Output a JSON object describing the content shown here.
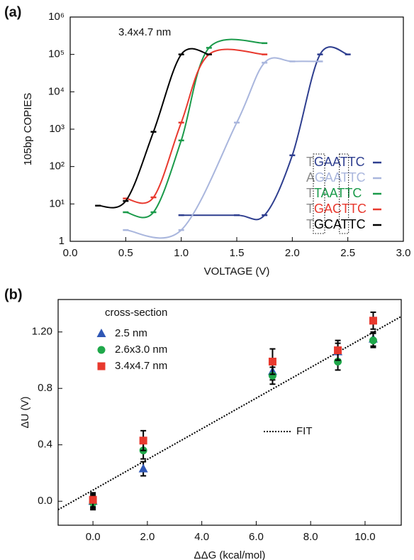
{
  "chart_data": [
    {
      "type": "line",
      "panel_label": "(a)",
      "annotation": "3.4x4.7 nm",
      "x_label": "VOLTAGE (V)",
      "y_label": "105bp COPIES",
      "log_y": true,
      "xlim": [
        0,
        3
      ],
      "ylim": [
        1,
        1000000
      ],
      "xticks": [
        {
          "value": 0,
          "label": "0.0"
        },
        {
          "value": 0.5,
          "label": "0.5"
        },
        {
          "value": 1,
          "label": "1.0"
        },
        {
          "value": 1.5,
          "label": "1.5"
        },
        {
          "value": 2,
          "label": "2.0"
        },
        {
          "value": 2.5,
          "label": "2.5"
        },
        {
          "value": 3,
          "label": "3.0"
        }
      ],
      "yticks": [
        1,
        {
          "value": 10,
          "label": "10¹"
        },
        {
          "value": 100,
          "label": "10²"
        },
        {
          "value": 1000,
          "label": "10³"
        },
        {
          "value": 10000,
          "label": "10⁴"
        },
        {
          "value": 100000,
          "label": "10⁵"
        },
        {
          "value": 1000000,
          "label": "10⁶"
        }
      ],
      "series": [
        {
          "name": "TGAATTC",
          "color": "#2e3e8f",
          "x": [
            1.0,
            1.5,
            1.75,
            2.0,
            2.25,
            2.5
          ],
          "values": [
            5,
            5,
            5,
            200,
            100000,
            100000
          ]
        },
        {
          "name": "AGAATTC",
          "color": "#a9b6dd",
          "x": [
            0.5,
            1.0,
            1.5,
            1.75,
            2.0,
            2.25
          ],
          "values": [
            2,
            2,
            1500,
            60000,
            65000,
            65000
          ]
        },
        {
          "name": "TTAATTC",
          "color": "#1a9a4a",
          "x": [
            0.5,
            0.75,
            1.0,
            1.25,
            1.75
          ],
          "values": [
            6,
            6,
            500,
            150000,
            200000
          ]
        },
        {
          "name": "TGACTTC",
          "color": "#e8392e",
          "x": [
            0.5,
            0.75,
            1.0,
            1.25,
            1.75
          ],
          "values": [
            14,
            15,
            1500,
            100000,
            100000
          ]
        },
        {
          "name": "TGCATTC",
          "color": "#000000",
          "x": [
            0.25,
            0.5,
            0.75,
            1.0,
            1.25
          ],
          "values": [
            9,
            12,
            850,
            100000,
            100000
          ]
        }
      ]
    },
    {
      "type": "scatter",
      "panel_label": "(b)",
      "x_label": "ΔΔG (kcal/mol)",
      "y_label": "ΔU (V)",
      "legend_title": "cross-section",
      "xlim": [
        -1.28,
        11.33
      ],
      "ylim": [
        -0.17,
        1.43
      ],
      "xticks": [
        {
          "value": 0,
          "label": "0.0"
        },
        {
          "value": 2,
          "label": "2.0"
        },
        {
          "value": 4,
          "label": "4.0"
        },
        {
          "value": 6,
          "label": "6.0"
        },
        {
          "value": 8,
          "label": "8.0"
        },
        {
          "value": 10,
          "label": "10.0"
        }
      ],
      "yticks": [
        {
          "value": 0,
          "label": "0.0"
        },
        0.4,
        0.8,
        {
          "value": 1.2,
          "label": "1.20"
        }
      ],
      "fit": {
        "name": "FIT",
        "color": "#000000",
        "x": [
          -1.28,
          11.33
        ],
        "values": [
          -0.06,
          1.31
        ]
      },
      "series": [
        {
          "name": "2.5 nm",
          "color": "#2f57b5",
          "marker": "triangle",
          "x": [
            0,
            1.85,
            6.6,
            9.0,
            10.3
          ],
          "values": [
            0.0,
            0.23,
            0.92,
            1.06,
            1.15
          ],
          "errors": [
            0.05,
            0.05,
            0.06,
            0.06,
            0.05
          ]
        },
        {
          "name": "2.6x3.0 nm",
          "color": "#1fa84a",
          "marker": "circle",
          "x": [
            0,
            1.85,
            6.6,
            9.0,
            10.3
          ],
          "values": [
            -0.01,
            0.36,
            0.89,
            0.99,
            1.14
          ],
          "errors": [
            0.05,
            0.06,
            0.06,
            0.06,
            0.05
          ]
        },
        {
          "name": "3.4x4.7 nm",
          "color": "#e8392e",
          "marker": "square",
          "x": [
            0,
            1.85,
            6.6,
            9.0,
            10.3
          ],
          "values": [
            0.01,
            0.43,
            0.99,
            1.07,
            1.28
          ],
          "errors": [
            0.05,
            0.07,
            0.09,
            0.07,
            0.06
          ]
        }
      ]
    }
  ]
}
